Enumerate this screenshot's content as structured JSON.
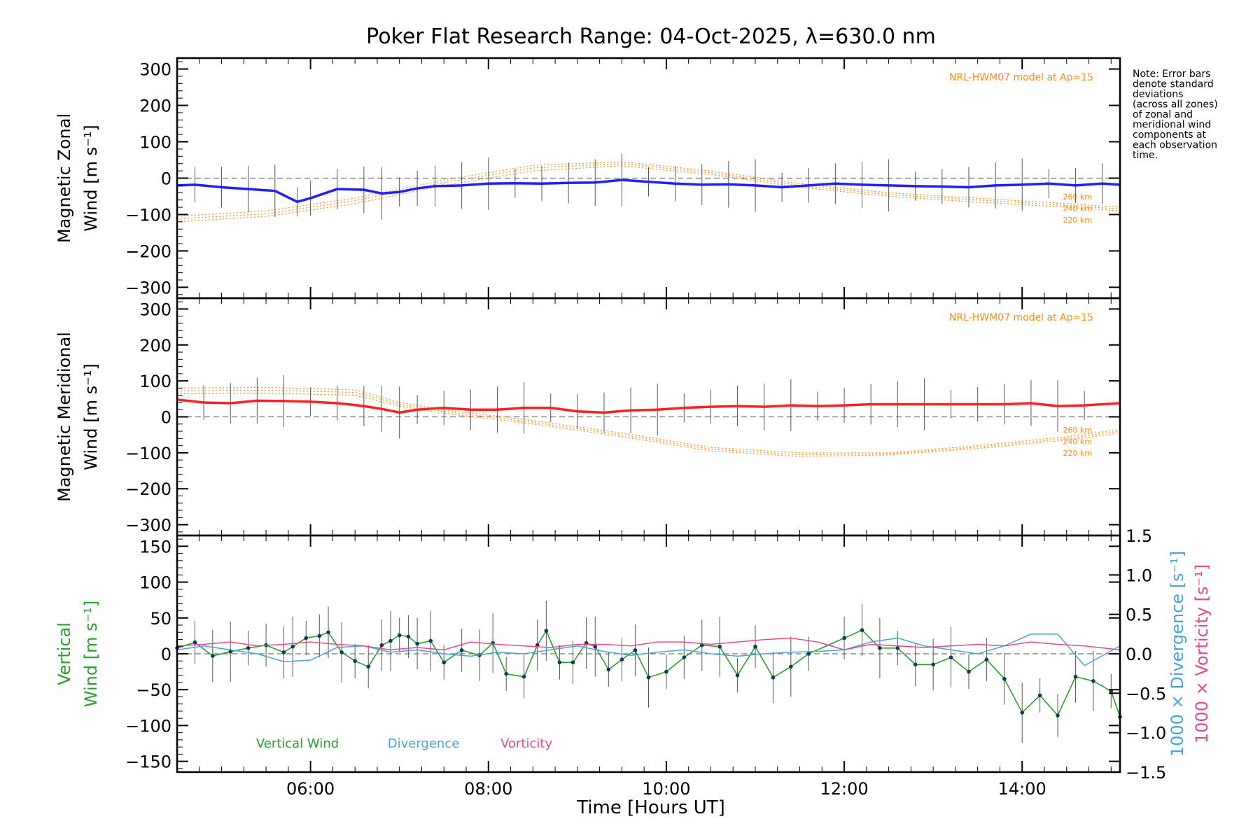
{
  "chart_data": {
    "type": "line",
    "title": "Poker Flat Research Range: 04-Oct-2025, λ=630.0 nm",
    "xlabel": "Time [Hours UT]",
    "x_ticks": [
      "06:00",
      "08:00",
      "10:00",
      "12:00",
      "14:00"
    ],
    "x_tick_values": [
      6,
      8,
      10,
      12,
      14
    ],
    "xlim": [
      4.5,
      15.1
    ],
    "note": [
      "Note: Error bars",
      "denote standard",
      "deviations",
      "(across all zones)",
      "of zonal and",
      "meridional wind",
      "components at",
      "each observation",
      "time."
    ],
    "colors": {
      "zonal": "#2020ff",
      "meridional": "#ff2020",
      "vertical": "#2ca02c",
      "divergence": "#4aa3d8",
      "vorticity": "#e64a8c",
      "model": "#ff8c1a",
      "errorbar": "#555555"
    },
    "panels": [
      {
        "id": "zonal",
        "ylabel": [
          "Magnetic Zonal",
          "Wind [m s⁻¹]"
        ],
        "ylim": [
          -330,
          330
        ],
        "y_ticks": [
          "300",
          "200",
          "100",
          "0",
          "−100",
          "−200",
          "−300"
        ],
        "y_tick_values": [
          300,
          200,
          100,
          0,
          -100,
          -200,
          -300
        ],
        "model_label": "NRL-HWM07 model at Ap=15",
        "model_altitudes": [
          "260 km",
          "240 km",
          "220 km"
        ],
        "model_curves": [
          {
            "name": "260 km",
            "x": [
              4.5,
              5.5,
              6.5,
              7.5,
              8.5,
              9.5,
              10.5,
              11.5,
              12.5,
              13.5,
              14.5,
              15.1
            ],
            "y": [
              -105,
              -90,
              -55,
              -5,
              35,
              45,
              20,
              -15,
              -40,
              -55,
              -70,
              -80
            ]
          },
          {
            "name": "240 km",
            "x": [
              4.5,
              5.5,
              6.5,
              7.5,
              8.5,
              9.5,
              10.5,
              11.5,
              12.5,
              13.5,
              14.5,
              15.1
            ],
            "y": [
              -112,
              -98,
              -62,
              -12,
              28,
              40,
              15,
              -20,
              -45,
              -60,
              -75,
              -85
            ]
          },
          {
            "name": "220 km",
            "x": [
              4.5,
              5.5,
              6.5,
              7.5,
              8.5,
              9.5,
              10.5,
              11.5,
              12.5,
              13.5,
              14.5,
              15.1
            ],
            "y": [
              -120,
              -105,
              -70,
              -20,
              20,
              34,
              10,
              -25,
              -50,
              -66,
              -80,
              -90
            ]
          }
        ],
        "series": [
          {
            "name": "Magnetic Zonal Wind",
            "x": [
              4.5,
              4.7,
              5.0,
              5.3,
              5.6,
              5.85,
              6.0,
              6.3,
              6.6,
              6.8,
              7.0,
              7.2,
              7.4,
              7.7,
              8.0,
              8.3,
              8.6,
              8.9,
              9.2,
              9.5,
              9.8,
              10.1,
              10.4,
              10.7,
              11.0,
              11.3,
              11.6,
              11.9,
              12.2,
              12.5,
              12.8,
              13.1,
              13.4,
              13.7,
              14.0,
              14.3,
              14.6,
              14.9,
              15.1
            ],
            "y": [
              -20,
              -18,
              -25,
              -30,
              -35,
              -65,
              -55,
              -30,
              -32,
              -42,
              -38,
              -28,
              -22,
              -20,
              -15,
              -14,
              -15,
              -13,
              -12,
              -5,
              -10,
              -15,
              -18,
              -17,
              -20,
              -25,
              -20,
              -15,
              -18,
              -20,
              -22,
              -23,
              -25,
              -20,
              -18,
              -15,
              -20,
              -15,
              -18
            ]
          }
        ]
      },
      {
        "id": "meridional",
        "ylabel": [
          "Magnetic Meridional",
          "Wind [m s⁻¹]"
        ],
        "ylim": [
          -330,
          330
        ],
        "y_ticks": [
          "300",
          "200",
          "100",
          "0",
          "−100",
          "−200",
          "−300"
        ],
        "y_tick_values": [
          300,
          200,
          100,
          0,
          -100,
          -200,
          -300
        ],
        "model_label": "NRL-HWM07 model at Ap=15",
        "model_altitudes": [
          "260 km",
          "240 km",
          "220 km"
        ],
        "model_curves": [
          {
            "name": "260 km",
            "x": [
              4.5,
              5.5,
              6.5,
              7.0,
              7.5,
              8.5,
              9.5,
              10.5,
              11.5,
              12.5,
              13.5,
              14.5,
              15.1
            ],
            "y": [
              80,
              82,
              75,
              40,
              20,
              -10,
              -45,
              -85,
              -100,
              -100,
              -80,
              -55,
              -35
            ]
          },
          {
            "name": "240 km",
            "x": [
              4.5,
              5.5,
              6.5,
              7.0,
              7.5,
              8.5,
              9.5,
              10.5,
              11.5,
              12.5,
              13.5,
              14.5,
              15.1
            ],
            "y": [
              72,
              74,
              68,
              35,
              15,
              -15,
              -50,
              -90,
              -105,
              -103,
              -84,
              -60,
              -40
            ]
          },
          {
            "name": "220 km",
            "x": [
              4.5,
              5.5,
              6.5,
              7.0,
              7.5,
              8.5,
              9.5,
              10.5,
              11.5,
              12.5,
              13.5,
              14.5,
              15.1
            ],
            "y": [
              64,
              66,
              60,
              30,
              10,
              -20,
              -55,
              -95,
              -110,
              -106,
              -88,
              -65,
              -45
            ]
          }
        ],
        "series": [
          {
            "name": "Magnetic Meridional Wind",
            "x": [
              4.5,
              4.8,
              5.1,
              5.4,
              5.7,
              6.0,
              6.3,
              6.6,
              6.8,
              7.0,
              7.2,
              7.5,
              7.8,
              8.1,
              8.4,
              8.7,
              9.0,
              9.3,
              9.6,
              9.9,
              10.2,
              10.5,
              10.8,
              11.1,
              11.4,
              11.7,
              12.0,
              12.3,
              12.6,
              12.9,
              13.2,
              13.5,
              13.8,
              14.1,
              14.4,
              14.7,
              15.1
            ],
            "y": [
              48,
              40,
              38,
              45,
              44,
              42,
              38,
              30,
              22,
              12,
              20,
              25,
              20,
              20,
              25,
              25,
              15,
              12,
              18,
              20,
              25,
              28,
              30,
              28,
              32,
              30,
              32,
              35,
              35,
              35,
              35,
              35,
              35,
              38,
              30,
              32,
              38
            ]
          }
        ]
      },
      {
        "id": "vertical",
        "ylabel_left": [
          "Vertical",
          "Wind [m s⁻¹]"
        ],
        "ylabel_right": [
          "1000 × Divergence [s⁻¹]",
          "1000 × Vorticity [s⁻¹]"
        ],
        "ylim": [
          -165,
          165
        ],
        "y_ticks": [
          "150",
          "100",
          "50",
          "0",
          "−50",
          "−100",
          "−150"
        ],
        "y_tick_values": [
          150,
          100,
          50,
          0,
          -50,
          -100,
          -150
        ],
        "ylim_right": [
          -1.5,
          1.5
        ],
        "y2_ticks": [
          "1.5",
          "1.0",
          "0.5",
          "0.0",
          "−0.5",
          "−1.0",
          "−1.5"
        ],
        "y2_tick_values": [
          1.5,
          1.0,
          0.5,
          0.0,
          -0.5,
          -1.0,
          -1.5
        ],
        "legend": [
          "Vertical Wind",
          "Divergence",
          "Vorticity"
        ],
        "series": [
          {
            "name": "Vertical Wind",
            "axis": "left",
            "x": [
              4.5,
              4.7,
              4.9,
              5.1,
              5.3,
              5.5,
              5.7,
              5.8,
              5.95,
              6.1,
              6.2,
              6.35,
              6.5,
              6.65,
              6.8,
              6.9,
              7.0,
              7.1,
              7.2,
              7.35,
              7.5,
              7.7,
              7.9,
              8.05,
              8.2,
              8.4,
              8.55,
              8.65,
              8.8,
              8.95,
              9.1,
              9.2,
              9.35,
              9.5,
              9.65,
              9.8,
              10.0,
              10.2,
              10.4,
              10.6,
              10.8,
              11.0,
              11.2,
              11.4,
              11.6,
              12.0,
              12.2,
              12.4,
              12.6,
              12.8,
              13.0,
              13.2,
              13.4,
              13.6,
              13.8,
              14.0,
              14.2,
              14.4,
              14.6,
              14.8,
              15.0,
              15.1
            ],
            "y": [
              8,
              16,
              -3,
              3,
              8,
              12,
              2,
              10,
              22,
              25,
              30,
              2,
              -10,
              -18,
              12,
              18,
              26,
              24,
              14,
              18,
              -12,
              5,
              -2,
              15,
              -28,
              -32,
              12,
              32,
              -12,
              -12,
              15,
              10,
              -22,
              -8,
              5,
              -33,
              -25,
              -5,
              12,
              10,
              -30,
              10,
              -33,
              -18,
              0,
              22,
              33,
              8,
              8,
              -15,
              -15,
              -5,
              -25,
              -8,
              -35,
              -82,
              -58,
              -86,
              -32,
              -38,
              -52,
              -88
            ]
          },
          {
            "name": "Divergence",
            "axis": "right",
            "x": [
              4.5,
              4.8,
              5.1,
              5.4,
              5.7,
              6.0,
              6.3,
              6.6,
              6.9,
              7.2,
              7.5,
              7.8,
              8.1,
              8.4,
              8.7,
              9.0,
              9.3,
              9.6,
              9.9,
              10.2,
              10.5,
              10.8,
              11.1,
              11.4,
              11.7,
              12.0,
              12.3,
              12.6,
              12.9,
              13.2,
              13.5,
              13.8,
              14.1,
              14.4,
              14.7,
              15.1
            ],
            "y": [
              0.05,
              0.1,
              0.05,
              0.0,
              -0.1,
              -0.08,
              0.08,
              0.1,
              0.02,
              0.05,
              0.0,
              -0.03,
              0.02,
              0.0,
              0.05,
              0.1,
              0.03,
              -0.02,
              0.02,
              0.05,
              0.0,
              -0.03,
              0.0,
              0.02,
              0.03,
              0.05,
              0.15,
              0.2,
              0.1,
              0.05,
              0.0,
              0.1,
              0.25,
              0.25,
              -0.15,
              0.1
            ]
          },
          {
            "name": "Vorticity",
            "axis": "right",
            "x": [
              4.5,
              4.8,
              5.1,
              5.4,
              5.7,
              6.0,
              6.3,
              6.6,
              6.9,
              7.2,
              7.5,
              7.8,
              8.1,
              8.4,
              8.7,
              9.0,
              9.3,
              9.6,
              9.9,
              10.2,
              10.5,
              10.8,
              11.1,
              11.4,
              11.7,
              12.0,
              12.3,
              12.6,
              12.9,
              13.2,
              13.5,
              13.8,
              14.1,
              14.4,
              14.7,
              15.1
            ],
            "y": [
              0.1,
              0.12,
              0.15,
              0.1,
              0.12,
              0.15,
              0.12,
              0.1,
              0.05,
              0.08,
              0.05,
              0.15,
              0.12,
              0.1,
              0.08,
              0.12,
              0.12,
              0.1,
              0.15,
              0.15,
              0.12,
              0.15,
              0.18,
              0.2,
              0.15,
              0.05,
              0.12,
              0.1,
              0.08,
              0.1,
              0.12,
              0.1,
              0.15,
              0.12,
              0.1,
              0.05
            ]
          }
        ]
      }
    ]
  }
}
